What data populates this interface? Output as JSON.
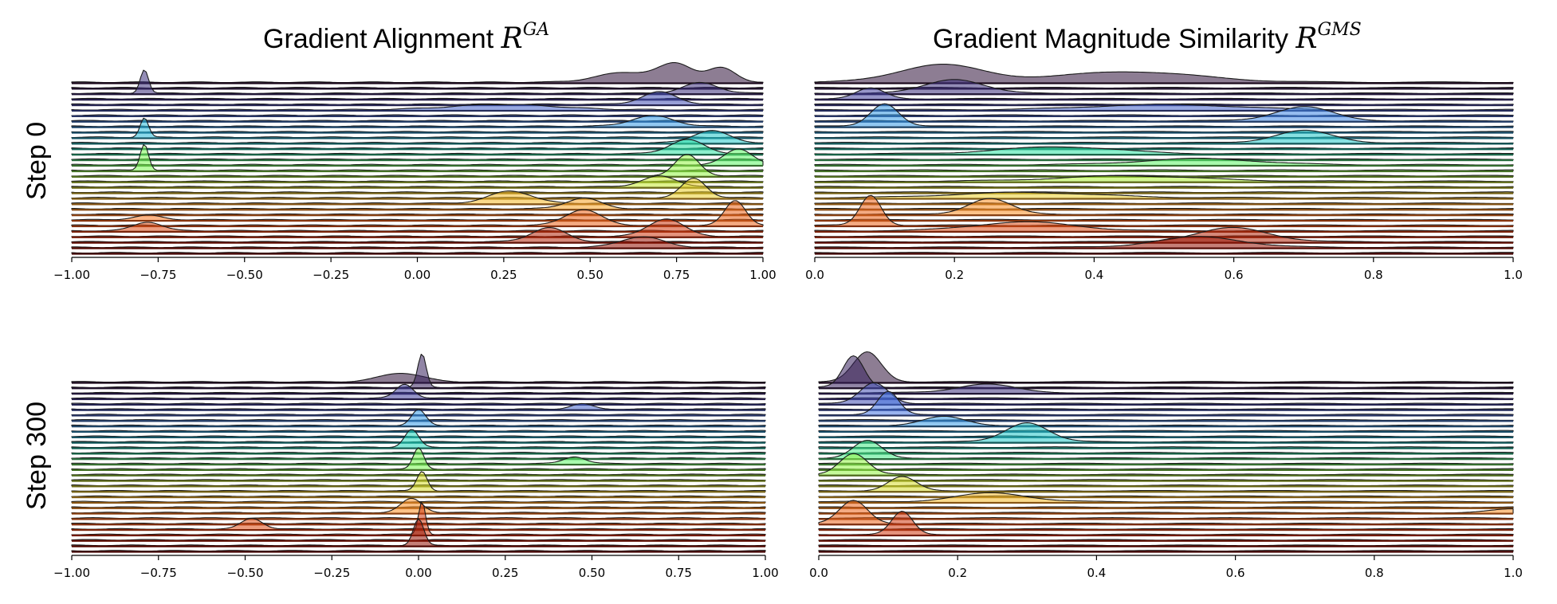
{
  "figure": {
    "column_titles": [
      {
        "text": "Gradient Alignment ",
        "math": "R",
        "sup": "GA"
      },
      {
        "text": "Gradient Magnitude Similarity ",
        "math": "R",
        "sup": "GMS"
      }
    ],
    "row_labels": [
      "Step 0",
      "Step 300"
    ]
  },
  "chart_data": [
    {
      "type": "area",
      "subtype": "ridgeline",
      "metric": "Gradient Alignment",
      "row": "Step 0",
      "xlim": [
        -1.0,
        1.0
      ],
      "xticks": [
        "−1.00",
        "−0.75",
        "−0.50",
        "−0.25",
        "0.00",
        "0.25",
        "0.50",
        "0.75",
        "1.00"
      ],
      "xtick_values": [
        -1.0,
        -0.75,
        -0.5,
        -0.25,
        0.0,
        0.25,
        0.5,
        0.75,
        1.0
      ],
      "n_ridges": 32,
      "colormap": "turbo (dark blue top → dark red bottom)",
      "peaks": [
        {
          "ridge": 0,
          "x": 0.75,
          "h": 1.0,
          "w": 0.05
        },
        {
          "ridge": 0,
          "x": 0.88,
          "h": 0.8,
          "w": 0.04
        },
        {
          "ridge": 0,
          "x": 0.6,
          "h": 0.55,
          "w": 0.08
        },
        {
          "ridge": 2,
          "x": -0.79,
          "h": 1.35,
          "w": 0.012
        },
        {
          "ridge": 2,
          "x": 0.82,
          "h": 0.6,
          "w": 0.05
        },
        {
          "ridge": 4,
          "x": 0.7,
          "h": 0.7,
          "w": 0.05
        },
        {
          "ridge": 5,
          "x": 0.25,
          "h": 0.3,
          "w": 0.15
        },
        {
          "ridge": 8,
          "x": 0.68,
          "h": 0.6,
          "w": 0.06
        },
        {
          "ridge": 10,
          "x": -0.79,
          "h": 1.1,
          "w": 0.012
        },
        {
          "ridge": 11,
          "x": 0.85,
          "h": 0.7,
          "w": 0.05
        },
        {
          "ridge": 13,
          "x": 0.78,
          "h": 0.8,
          "w": 0.05
        },
        {
          "ridge": 15,
          "x": 0.93,
          "h": 0.9,
          "w": 0.04
        },
        {
          "ridge": 16,
          "x": -0.79,
          "h": 1.5,
          "w": 0.012
        },
        {
          "ridge": 17,
          "x": 0.78,
          "h": 1.2,
          "w": 0.035
        },
        {
          "ridge": 19,
          "x": 0.7,
          "h": 0.6,
          "w": 0.05
        },
        {
          "ridge": 21,
          "x": 0.8,
          "h": 1.1,
          "w": 0.035
        },
        {
          "ridge": 22,
          "x": 0.27,
          "h": 0.7,
          "w": 0.06
        },
        {
          "ridge": 23,
          "x": 0.48,
          "h": 0.6,
          "w": 0.05
        },
        {
          "ridge": 25,
          "x": -0.78,
          "h": 0.25,
          "w": 0.04
        },
        {
          "ridge": 26,
          "x": 0.48,
          "h": 0.9,
          "w": 0.05
        },
        {
          "ridge": 26,
          "x": 0.92,
          "h": 1.4,
          "w": 0.03
        },
        {
          "ridge": 27,
          "x": -0.78,
          "h": 0.5,
          "w": 0.04
        },
        {
          "ridge": 28,
          "x": 0.72,
          "h": 1.0,
          "w": 0.05
        },
        {
          "ridge": 29,
          "x": 0.38,
          "h": 0.8,
          "w": 0.05
        },
        {
          "ridge": 30,
          "x": 0.65,
          "h": 0.6,
          "w": 0.06
        }
      ]
    },
    {
      "type": "area",
      "subtype": "ridgeline",
      "metric": "Gradient Magnitude Similarity",
      "row": "Step 0",
      "xlim": [
        0.0,
        1.0
      ],
      "xticks": [
        "0.0",
        "0.2",
        "0.4",
        "0.6",
        "0.8",
        "1.0"
      ],
      "xtick_values": [
        0.0,
        0.2,
        0.4,
        0.6,
        0.8,
        1.0
      ],
      "n_ridges": 32,
      "colormap": "turbo (dark blue top → dark red bottom)",
      "peaks": [
        {
          "ridge": 0,
          "x": 0.18,
          "h": 1.0,
          "w": 0.06
        },
        {
          "ridge": 0,
          "x": 0.45,
          "h": 0.6,
          "w": 0.1
        },
        {
          "ridge": 2,
          "x": 0.2,
          "h": 0.8,
          "w": 0.04
        },
        {
          "ridge": 3,
          "x": 0.08,
          "h": 0.6,
          "w": 0.02
        },
        {
          "ridge": 5,
          "x": 0.5,
          "h": 0.3,
          "w": 0.1
        },
        {
          "ridge": 7,
          "x": 0.7,
          "h": 0.8,
          "w": 0.04
        },
        {
          "ridge": 8,
          "x": 0.1,
          "h": 1.3,
          "w": 0.02
        },
        {
          "ridge": 11,
          "x": 0.7,
          "h": 0.7,
          "w": 0.04
        },
        {
          "ridge": 13,
          "x": 0.35,
          "h": 0.4,
          "w": 0.08
        },
        {
          "ridge": 15,
          "x": 0.55,
          "h": 0.35,
          "w": 0.08
        },
        {
          "ridge": 18,
          "x": 0.45,
          "h": 0.3,
          "w": 0.1
        },
        {
          "ridge": 21,
          "x": 0.3,
          "h": 0.3,
          "w": 0.1
        },
        {
          "ridge": 24,
          "x": 0.25,
          "h": 0.9,
          "w": 0.03
        },
        {
          "ridge": 26,
          "x": 0.08,
          "h": 1.7,
          "w": 0.015
        },
        {
          "ridge": 27,
          "x": 0.3,
          "h": 0.5,
          "w": 0.07
        },
        {
          "ridge": 29,
          "x": 0.6,
          "h": 0.8,
          "w": 0.05
        },
        {
          "ridge": 30,
          "x": 0.55,
          "h": 0.6,
          "w": 0.06
        }
      ]
    },
    {
      "type": "area",
      "subtype": "ridgeline",
      "metric": "Gradient Alignment",
      "row": "Step 300",
      "xlim": [
        -1.0,
        1.0
      ],
      "xticks": [
        "−1.00",
        "−0.75",
        "−0.50",
        "−0.25",
        "0.00",
        "0.25",
        "0.50",
        "0.75",
        "1.00"
      ],
      "xtick_values": [
        -1.0,
        -0.75,
        -0.5,
        -0.25,
        0.0,
        0.25,
        0.5,
        0.75,
        1.0
      ],
      "n_ridges": 32,
      "colormap": "turbo (dark blue top → dark red bottom)",
      "peaks": [
        {
          "ridge": 0,
          "x": -0.05,
          "h": 0.5,
          "w": 0.06
        },
        {
          "ridge": 1,
          "x": 0.01,
          "h": 1.9,
          "w": 0.012
        },
        {
          "ridge": 3,
          "x": -0.04,
          "h": 0.8,
          "w": 0.025
        },
        {
          "ridge": 5,
          "x": 0.47,
          "h": 0.3,
          "w": 0.03
        },
        {
          "ridge": 8,
          "x": 0.0,
          "h": 0.9,
          "w": 0.02
        },
        {
          "ridge": 12,
          "x": -0.02,
          "h": 1.0,
          "w": 0.02
        },
        {
          "ridge": 15,
          "x": 0.45,
          "h": 0.4,
          "w": 0.03
        },
        {
          "ridge": 16,
          "x": 0.0,
          "h": 1.2,
          "w": 0.015
        },
        {
          "ridge": 20,
          "x": 0.01,
          "h": 1.1,
          "w": 0.015
        },
        {
          "ridge": 24,
          "x": -0.02,
          "h": 0.8,
          "w": 0.03
        },
        {
          "ridge": 27,
          "x": -0.48,
          "h": 0.6,
          "w": 0.03
        },
        {
          "ridge": 28,
          "x": 0.01,
          "h": 1.9,
          "w": 0.01
        },
        {
          "ridge": 30,
          "x": 0.0,
          "h": 1.5,
          "w": 0.015
        }
      ]
    },
    {
      "type": "area",
      "subtype": "ridgeline",
      "metric": "Gradient Magnitude Similarity",
      "row": "Step 300",
      "xlim": [
        0.0,
        1.0
      ],
      "xticks": [
        "0.0",
        "0.2",
        "0.4",
        "0.6",
        "0.8",
        "1.0"
      ],
      "xtick_values": [
        0.0,
        0.2,
        0.4,
        0.6,
        0.8,
        1.0
      ],
      "n_ridges": 32,
      "colormap": "turbo (dark blue top → dark red bottom)",
      "peaks": [
        {
          "ridge": 0,
          "x": 0.07,
          "h": 1.7,
          "w": 0.02
        },
        {
          "ridge": 1,
          "x": 0.05,
          "h": 1.8,
          "w": 0.015
        },
        {
          "ridge": 2,
          "x": 0.24,
          "h": 0.5,
          "w": 0.04
        },
        {
          "ridge": 4,
          "x": 0.08,
          "h": 1.2,
          "w": 0.02
        },
        {
          "ridge": 6,
          "x": 0.1,
          "h": 1.3,
          "w": 0.015
        },
        {
          "ridge": 8,
          "x": 0.18,
          "h": 0.5,
          "w": 0.03
        },
        {
          "ridge": 11,
          "x": 0.3,
          "h": 1.1,
          "w": 0.03
        },
        {
          "ridge": 14,
          "x": 0.07,
          "h": 1.0,
          "w": 0.02
        },
        {
          "ridge": 17,
          "x": 0.05,
          "h": 1.2,
          "w": 0.02
        },
        {
          "ridge": 20,
          "x": 0.12,
          "h": 0.8,
          "w": 0.02
        },
        {
          "ridge": 22,
          "x": 0.25,
          "h": 0.5,
          "w": 0.05
        },
        {
          "ridge": 24,
          "x": 1.0,
          "h": 0.2,
          "w": 0.03
        },
        {
          "ridge": 26,
          "x": 0.05,
          "h": 1.3,
          "w": 0.02
        },
        {
          "ridge": 28,
          "x": 0.12,
          "h": 1.3,
          "w": 0.015
        }
      ]
    }
  ]
}
